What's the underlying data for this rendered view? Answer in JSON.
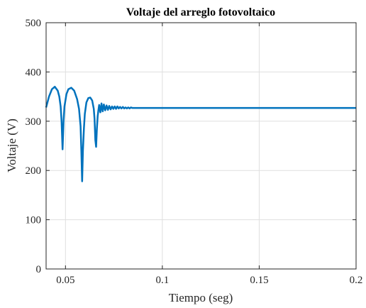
{
  "chart_data": {
    "type": "line",
    "title": "Voltaje del arreglo fotovoltaico",
    "xlabel": "Tiempo (seg)",
    "ylabel": "Voltaje (V)",
    "xlim": [
      0.04,
      0.2
    ],
    "ylim": [
      0,
      500
    ],
    "xticks": [
      0.05,
      0.1,
      0.15,
      0.2
    ],
    "xtick_labels": [
      "0.05",
      "0.1",
      "0.15",
      "0.2"
    ],
    "yticks": [
      0,
      100,
      200,
      300,
      400,
      500
    ],
    "ytick_labels": [
      "0",
      "100",
      "200",
      "300",
      "400",
      "500"
    ],
    "grid": true,
    "line_color": "#0072bd",
    "series": [
      {
        "x": [
          0.04,
          0.0415,
          0.043,
          0.0445,
          0.046,
          0.0468,
          0.0475,
          0.048,
          0.0485,
          0.049,
          0.0495,
          0.0505,
          0.0515,
          0.053,
          0.0545,
          0.056,
          0.057,
          0.0578,
          0.0582,
          0.0586,
          0.059,
          0.0595,
          0.06,
          0.0608,
          0.0618,
          0.0628,
          0.0638,
          0.0646,
          0.065,
          0.0654,
          0.0658,
          0.0662,
          0.0666,
          0.067,
          0.0674,
          0.068,
          0.0686,
          0.0692,
          0.0698,
          0.0705,
          0.0712,
          0.0719,
          0.0726,
          0.0733,
          0.074,
          0.0747,
          0.0754,
          0.0761,
          0.0768,
          0.0775,
          0.0782,
          0.0789,
          0.0796,
          0.0803,
          0.081,
          0.0817,
          0.0824,
          0.0831,
          0.0838,
          0.0845,
          0.085,
          0.09,
          0.1,
          0.11,
          0.12,
          0.13,
          0.14,
          0.15,
          0.16,
          0.17,
          0.18,
          0.19,
          0.2
        ],
        "y": [
          328,
          350,
          365,
          370,
          362,
          350,
          330,
          300,
          243,
          300,
          330,
          355,
          365,
          368,
          362,
          345,
          325,
          290,
          240,
          178,
          240,
          285,
          315,
          338,
          347,
          348,
          342,
          325,
          305,
          262,
          248,
          285,
          310,
          322,
          333,
          318,
          336,
          320,
          334,
          322,
          332,
          323,
          331,
          324,
          330,
          325,
          330,
          325,
          330,
          326,
          329,
          326,
          329,
          326,
          328,
          326,
          328,
          326,
          328,
          327,
          327,
          327,
          327,
          327,
          327,
          327,
          327,
          327,
          327,
          327,
          327,
          327,
          327
        ]
      }
    ]
  }
}
